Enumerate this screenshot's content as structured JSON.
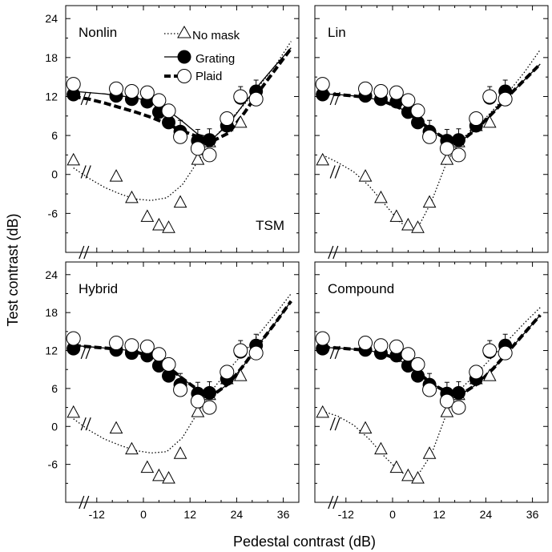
{
  "chart_data": {
    "type": "line",
    "xlabel": "Pedestal contrast  (dB)",
    "ylabel": "Test contrast (dB)",
    "xlim": [
      -20,
      40
    ],
    "ylim": [
      -12,
      26
    ],
    "xticks": [
      -12,
      0,
      12,
      24,
      36
    ],
    "yticks": [
      -6,
      0,
      6,
      12,
      18,
      24
    ],
    "data_x": [
      -18,
      -7,
      -3,
      1,
      4,
      6.5,
      9.5,
      14,
      17,
      21.5,
      25,
      29
    ],
    "data": {
      "no_mask": [
        2.2,
        -0.3,
        -3.6,
        -6.5,
        -7.8,
        -8.2,
        -4.3,
        2.3,
        5.0,
        7.5,
        8.0,
        12.5
      ],
      "grating": [
        12.3,
        12.1,
        11.6,
        11.2,
        9.6,
        8.0,
        6.6,
        5.2,
        5.3,
        7.5,
        11.8,
        12.8
      ],
      "plaid": [
        13.9,
        13.2,
        12.8,
        12.6,
        11.4,
        9.8,
        5.8,
        4.0,
        3.0,
        8.6,
        12.0,
        11.6
      ]
    },
    "legend": {
      "no_mask": "No mask",
      "grating": "Grating",
      "plaid": "Plaid"
    },
    "panels": [
      {
        "label": "Nonlin",
        "annotation": "TSM",
        "fits": {
          "no_mask": {
            "x": [
              -18,
              -14,
              -10,
              -6,
              -2,
              2,
              6,
              10,
              14,
              18,
              22,
              26,
              30,
              34,
              38
            ],
            "y": [
              1.0,
              -0.6,
              -2.0,
              -3.0,
              -3.8,
              -4.0,
              -3.6,
              -1.6,
              2.0,
              5.5,
              8.2,
              10.8,
              13.8,
              16.8,
              20.5
            ]
          },
          "grating": {
            "x": [
              -18,
              -14,
              -10,
              -6,
              -2,
              2,
              6,
              10,
              14,
              18,
              22,
              26,
              30,
              34,
              38
            ],
            "y": [
              12.8,
              12.6,
              12.4,
              12.1,
              11.8,
              11.2,
              10.0,
              8.2,
              6.2,
              5.6,
              7.8,
              11.0,
              14.0,
              16.8,
              19.5
            ]
          },
          "plaid": {
            "x": [
              -18,
              -14,
              -10,
              -6,
              -2,
              2,
              6,
              10,
              14,
              18,
              22,
              26,
              30,
              34,
              38
            ],
            "y": [
              12.0,
              11.6,
              11.0,
              10.3,
              9.6,
              8.8,
              7.8,
              6.7,
              5.8,
              5.2,
              6.4,
              9.5,
              13.0,
              16.2,
              19.4
            ]
          }
        }
      },
      {
        "label": "Lin",
        "annotation": "",
        "fits": {
          "no_mask": {
            "x": [
              -18,
              -14,
              -10,
              -6,
              -2,
              2,
              6,
              10,
              14,
              18,
              22,
              26,
              30,
              34,
              38
            ],
            "y": [
              3.0,
              1.8,
              0.4,
              -1.8,
              -4.6,
              -7.4,
              -8.8,
              -4.2,
              2.0,
              5.6,
              7.5,
              10.0,
              12.8,
              15.8,
              19.2
            ]
          },
          "grating": {
            "x": [
              -18,
              -14,
              -10,
              -6,
              -2,
              2,
              6,
              10,
              14,
              18,
              22,
              26,
              30,
              34,
              38
            ],
            "y": [
              12.4,
              12.3,
              12.1,
              11.8,
              11.2,
              10.2,
              8.6,
              6.8,
              5.4,
              5.3,
              7.2,
              9.6,
              12.2,
              14.6,
              17.0
            ]
          },
          "plaid": {
            "x": [
              -18,
              -14,
              -10,
              -6,
              -2,
              2,
              6,
              10,
              14,
              18,
              22,
              26,
              30,
              34,
              38
            ],
            "y": [
              12.4,
              12.3,
              12.1,
              11.8,
              11.2,
              10.2,
              8.6,
              6.8,
              5.4,
              5.3,
              7.2,
              9.6,
              12.2,
              14.6,
              17.0
            ]
          }
        }
      },
      {
        "label": "Hybrid",
        "annotation": "",
        "fits": {
          "no_mask": {
            "x": [
              -18,
              -14,
              -10,
              -6,
              -2,
              2,
              6,
              10,
              14,
              18,
              22,
              26,
              30,
              34,
              38
            ],
            "y": [
              1.2,
              -0.6,
              -2.0,
              -3.0,
              -3.8,
              -4.2,
              -4.0,
              -1.8,
              2.2,
              6.0,
              9.0,
              11.8,
              14.8,
              17.8,
              21.0
            ]
          },
          "grating": {
            "x": [
              -18,
              -14,
              -10,
              -6,
              -2,
              2,
              6,
              10,
              14,
              18,
              22,
              26,
              30,
              34,
              38
            ],
            "y": [
              12.8,
              12.6,
              12.4,
              12.2,
              11.8,
              11.0,
              9.6,
              7.6,
              5.8,
              5.0,
              6.8,
              9.8,
              13.2,
              16.4,
              19.8
            ]
          },
          "plaid": {
            "x": [
              -18,
              -14,
              -10,
              -6,
              -2,
              2,
              6,
              10,
              14,
              18,
              22,
              26,
              30,
              34,
              38
            ],
            "y": [
              12.8,
              12.6,
              12.4,
              12.2,
              11.8,
              11.0,
              9.6,
              7.6,
              5.8,
              5.0,
              6.8,
              9.8,
              13.2,
              16.4,
              19.8
            ]
          }
        }
      },
      {
        "label": "Compound",
        "annotation": "",
        "fits": {
          "no_mask": {
            "x": [
              -18,
              -14,
              -10,
              -6,
              -2,
              2,
              6,
              10,
              14,
              18,
              22,
              26,
              30,
              34,
              38
            ],
            "y": [
              2.4,
              1.6,
              0.2,
              -2.0,
              -4.8,
              -7.2,
              -8.2,
              -4.4,
              2.2,
              6.2,
              8.6,
              11.2,
              13.8,
              16.4,
              18.8
            ]
          },
          "grating": {
            "x": [
              -18,
              -14,
              -10,
              -6,
              -2,
              2,
              6,
              10,
              14,
              18,
              22,
              26,
              30,
              34,
              38
            ],
            "y": [
              12.5,
              12.4,
              12.2,
              12.0,
              11.4,
              10.4,
              8.8,
              6.8,
              5.4,
              5.2,
              6.8,
              9.2,
              12.0,
              14.8,
              17.6
            ]
          },
          "plaid": {
            "x": [
              -18,
              -14,
              -10,
              -6,
              -2,
              2,
              6,
              10,
              14,
              18,
              22,
              26,
              30,
              34,
              38
            ],
            "y": [
              12.5,
              12.4,
              12.2,
              12.0,
              11.4,
              10.4,
              8.8,
              6.8,
              5.4,
              5.2,
              6.8,
              9.2,
              12.0,
              14.8,
              17.6
            ]
          }
        }
      }
    ]
  }
}
